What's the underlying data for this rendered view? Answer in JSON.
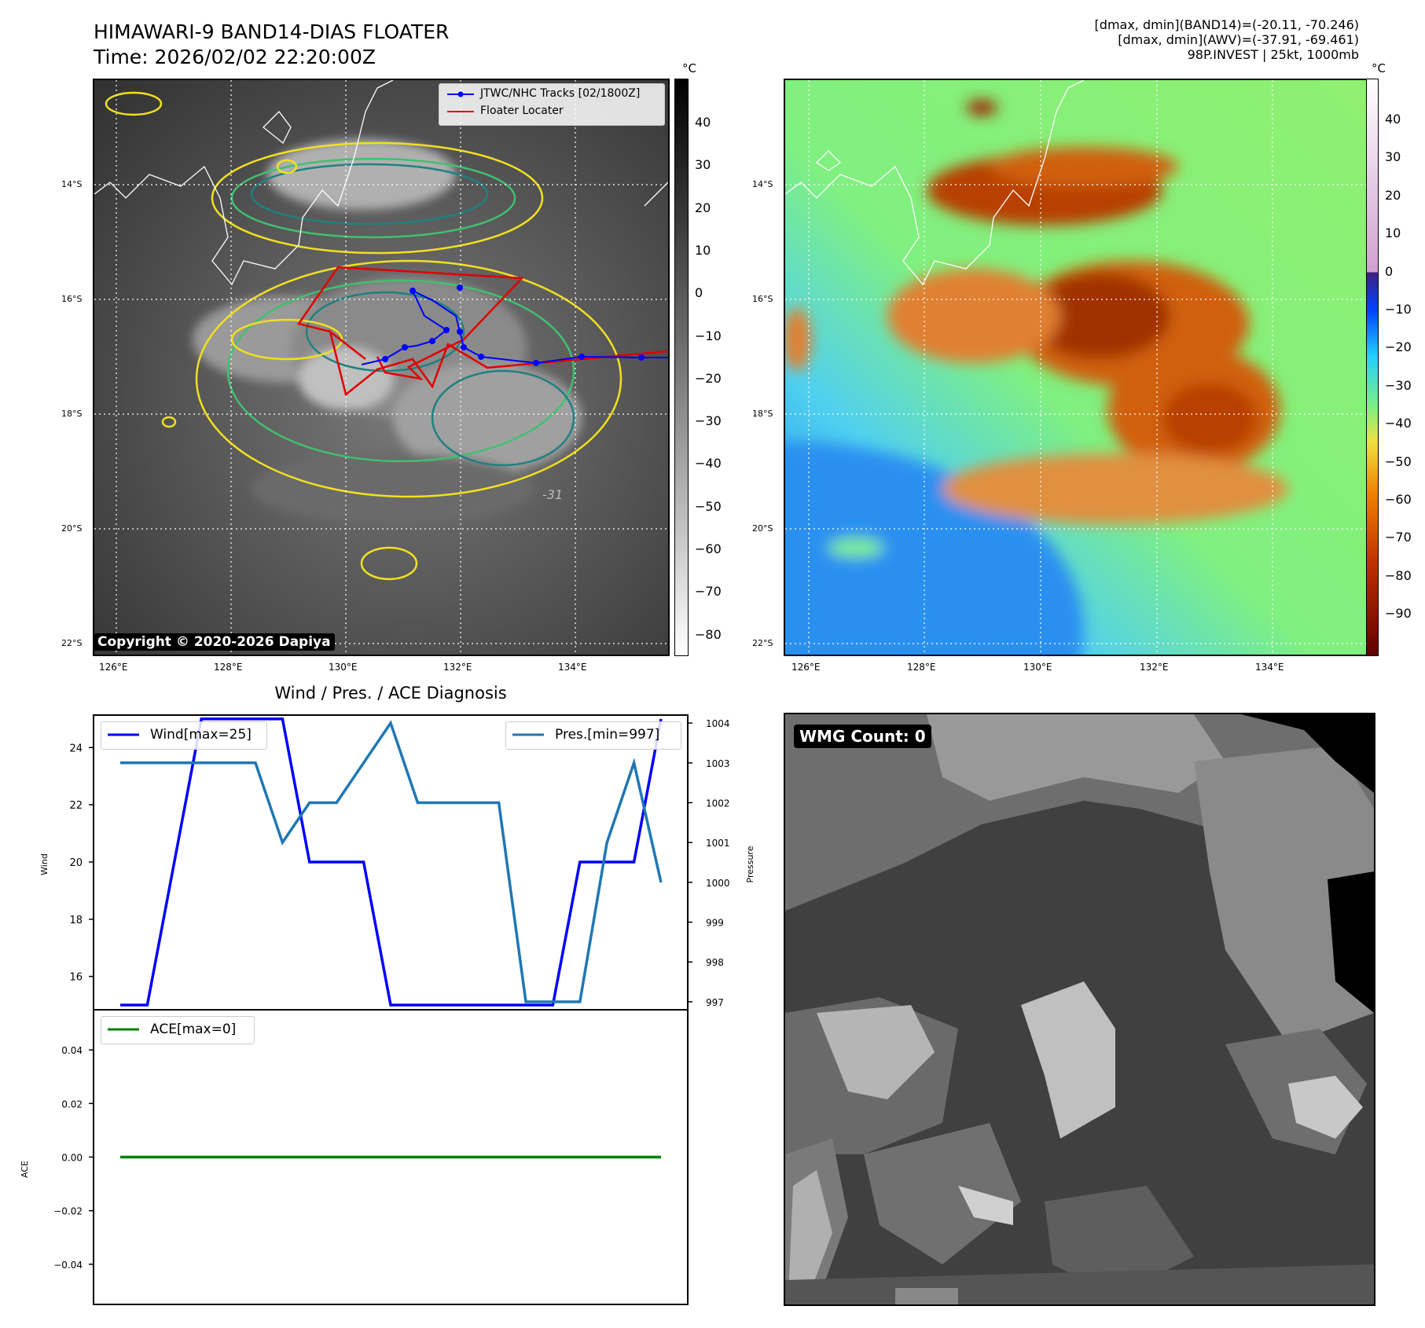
{
  "title_line1": "HIMAWARI-9 BAND14-DIAS FLOATER",
  "title_line2": "Time: 2026/02/02 22:20:00Z",
  "info_line1": "[dmax, dmin](BAND14)=(-20.11, -70.246)",
  "info_line2": "[dmax, dmin](AWV)=(-37.91, -69.461)",
  "info_line3": "98P.INVEST | 25kt, 1000mb",
  "copyright": "Copyright © 2020-2026 Dapiya",
  "wmg_count": "WMG Count: 0",
  "colorbar_unit": "°C",
  "colorbar_left_ticks": [
    "40",
    "30",
    "20",
    "10",
    "0",
    "−10",
    "−20",
    "−30",
    "−40",
    "−50",
    "−60",
    "−70",
    "−80"
  ],
  "colorbar_right_ticks": [
    "40",
    "30",
    "20",
    "10",
    "0",
    "−10",
    "−20",
    "−30",
    "−40",
    "−50",
    "−60",
    "−70",
    "−80",
    "−90"
  ],
  "lat_labels": [
    "14°S",
    "16°S",
    "18°S",
    "20°S",
    "22°S"
  ],
  "lon_labels": [
    "126°E",
    "128°E",
    "130°E",
    "132°E",
    "134°E"
  ],
  "legend_map": {
    "track": "JTWC/NHC Tracks [02/1800Z]",
    "floater": "Floater Locater"
  },
  "contour_label": "-31",
  "colors": {
    "track": "#0000ff",
    "floater": "#e00000",
    "wind": "#0000ff",
    "pres": "#1f77b4",
    "ace": "#008000",
    "contour_yellow": "#f0e020",
    "contour_green": "#40c070",
    "contour_teal": "#208080"
  },
  "chart_data": [
    {
      "type": "line",
      "title": "Wind / Pres. / ACE Diagnosis",
      "ylabel": "Wind",
      "y2label": "Pressure",
      "ylim": [
        15,
        25.3
      ],
      "y2lim": [
        996.8,
        1004.2
      ],
      "yticks": [
        "24",
        "22",
        "20",
        "18",
        "16"
      ],
      "y2ticks": [
        "1004",
        "1003",
        "1002",
        "1001",
        "1000",
        "999",
        "998",
        "997"
      ],
      "series": [
        {
          "name": "Wind[max=25]",
          "axis": "left",
          "values": [
            15,
            15,
            20,
            25,
            25,
            25,
            25,
            20,
            20,
            20,
            15,
            15,
            15,
            15,
            15,
            15,
            15,
            20,
            20,
            20,
            25
          ]
        },
        {
          "name": "Pres.[min=997]",
          "axis": "right",
          "values": [
            1003,
            1003,
            1003,
            1003,
            1003,
            1003,
            1001,
            1002,
            1002,
            1003,
            1004,
            1002,
            1002,
            1002,
            1002,
            997,
            997,
            997,
            1001,
            1003,
            1000
          ]
        }
      ]
    },
    {
      "type": "line",
      "ylabel": "ACE",
      "ylim": [
        -0.055,
        0.055
      ],
      "yticks": [
        "0.04",
        "0.02",
        "0.00",
        "−0.02",
        "−0.04"
      ],
      "series": [
        {
          "name": "ACE[max=0]",
          "values": [
            0,
            0
          ]
        }
      ]
    }
  ]
}
